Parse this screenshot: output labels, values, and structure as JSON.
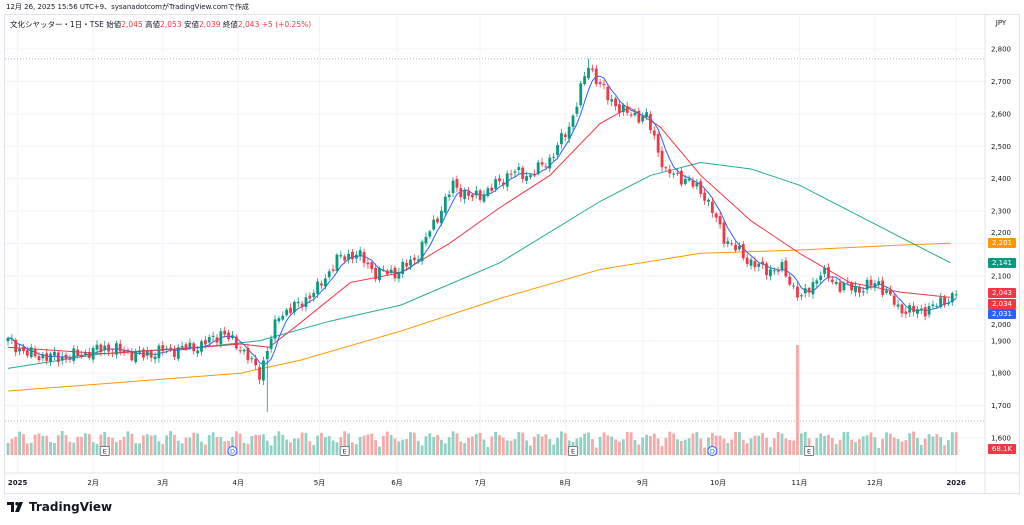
{
  "credit": "12月 26, 2025 15:56 UTC+9、sysanadotcomがTradingView.comで作成",
  "legend": {
    "symbol": "文化シヤッター・1日・TSE",
    "open_label": "始値",
    "open": "2,045",
    "high_label": "高値",
    "high": "2,053",
    "low_label": "安値",
    "low": "2,039",
    "close_label": "終値",
    "close": "2,043",
    "change": "+5 (+0.25%)"
  },
  "currency": "JPY",
  "brand": "TradingView",
  "colors": {
    "up": "#089981",
    "down": "#f23645",
    "vol_up": "#8fd1c4",
    "vol_down": "#f7a9a7",
    "ma_fast": "#2962ff",
    "ma_25": "#f23645",
    "ma_75": "#22ab94",
    "ma_200": "#ff9800"
  },
  "tags": [
    {
      "label": "2,201",
      "price": 2201,
      "color": "#ff9800"
    },
    {
      "label": "2,141",
      "price": 2141,
      "color": "#089981"
    },
    {
      "label": "2,043",
      "price": 2043,
      "color": "#f23645"
    },
    {
      "label": "2,034",
      "price": 2034,
      "color": "#f23645"
    },
    {
      "label": "2,031",
      "price": 2031,
      "color": "#2962ff"
    }
  ],
  "volume_tag": "68.1K",
  "chart_data": {
    "type": "candlestick",
    "title": "文化シヤッター・1日・TSE",
    "ylim": [
      1580,
      2830
    ],
    "y_ticks": [
      {
        "v": 2800,
        "l": "2,800"
      },
      {
        "v": 2700,
        "l": "2,700"
      },
      {
        "v": 2600,
        "l": "2,600"
      },
      {
        "v": 2500,
        "l": "2,500"
      },
      {
        "v": 2400,
        "l": "2,400"
      },
      {
        "v": 2300,
        "l": "2,300"
      },
      {
        "v": 2200,
        "l": "2,200"
      },
      {
        "v": 2100,
        "l": "2,100"
      },
      {
        "v": 2000,
        "l": "2,000"
      },
      {
        "v": 1900,
        "l": "1,900"
      },
      {
        "v": 1800,
        "l": "1,800"
      },
      {
        "v": 1700,
        "l": "1,700"
      },
      {
        "v": 1600,
        "l": "1,600"
      }
    ],
    "x_ticks": [
      {
        "w": 0.5,
        "l": "2025",
        "bold": true
      },
      {
        "w": 4.4,
        "l": "2月"
      },
      {
        "w": 8,
        "l": "3月"
      },
      {
        "w": 11.9,
        "l": "4月"
      },
      {
        "w": 16.1,
        "l": "5月"
      },
      {
        "w": 20.1,
        "l": "6月"
      },
      {
        "w": 24.4,
        "l": "7月"
      },
      {
        "w": 28.8,
        "l": "8月"
      },
      {
        "w": 32.8,
        "l": "9月"
      },
      {
        "w": 36.7,
        "l": "10月"
      },
      {
        "w": 40.9,
        "l": "11月"
      },
      {
        "w": 44.8,
        "l": "12月"
      },
      {
        "w": 49,
        "l": "2026",
        "bold": true
      }
    ],
    "weekly_close": [
      1900,
      1860,
      1850,
      1850,
      1860,
      1880,
      1865,
      1855,
      1870,
      1875,
      1885,
      1925,
      1880,
      1800,
      1980,
      2010,
      2060,
      2150,
      2170,
      2110,
      2110,
      2150,
      2260,
      2380,
      2340,
      2370,
      2420,
      2410,
      2460,
      2560,
      2750,
      2650,
      2600,
      2590,
      2420,
      2400,
      2350,
      2220,
      2160,
      2120,
      2120,
      2030,
      2110,
      2070,
      2060,
      2080,
      2000,
      1990,
      2010,
      2043
    ],
    "period_high": 2770,
    "ma_25": [
      [
        0,
        1880
      ],
      [
        5,
        1860
      ],
      [
        10,
        1880
      ],
      [
        12,
        1890
      ],
      [
        13.5,
        1880
      ],
      [
        15,
        1950
      ],
      [
        17.7,
        2080
      ],
      [
        20.3,
        2110
      ],
      [
        22.8,
        2200
      ],
      [
        25.4,
        2310
      ],
      [
        28,
        2410
      ],
      [
        30.6,
        2570
      ],
      [
        32.1,
        2620
      ],
      [
        33.7,
        2560
      ],
      [
        35.8,
        2410
      ],
      [
        38.4,
        2270
      ],
      [
        40.9,
        2170
      ],
      [
        43.5,
        2080
      ],
      [
        46.1,
        2050
      ],
      [
        48.7,
        2034
      ]
    ],
    "ma_75": [
      [
        0,
        1815
      ],
      [
        4.8,
        1860
      ],
      [
        9.9,
        1880
      ],
      [
        13,
        1900
      ],
      [
        16.6,
        1960
      ],
      [
        20.3,
        2010
      ],
      [
        25.4,
        2140
      ],
      [
        30.6,
        2330
      ],
      [
        33.2,
        2410
      ],
      [
        35.8,
        2450
      ],
      [
        38.4,
        2430
      ],
      [
        40.9,
        2380
      ],
      [
        43.5,
        2300
      ],
      [
        46.1,
        2220
      ],
      [
        48.7,
        2141
      ]
    ],
    "ma_200": [
      [
        0,
        1745
      ],
      [
        12,
        1800
      ],
      [
        15.1,
        1840
      ],
      [
        20.3,
        1930
      ],
      [
        25.4,
        2030
      ],
      [
        30.6,
        2120
      ],
      [
        35.8,
        2170
      ],
      [
        40.9,
        2180
      ],
      [
        46.1,
        2195
      ],
      [
        48.7,
        2201
      ]
    ],
    "events": [
      {
        "w": 5,
        "l": "E"
      },
      {
        "w": 11.6,
        "l": "D"
      },
      {
        "w": 17.4,
        "l": "E"
      },
      {
        "w": 29.2,
        "l": "E"
      },
      {
        "w": 36.4,
        "l": "D"
      },
      {
        "w": 41.4,
        "l": "E"
      }
    ],
    "volume_spike_week": 40.8
  }
}
